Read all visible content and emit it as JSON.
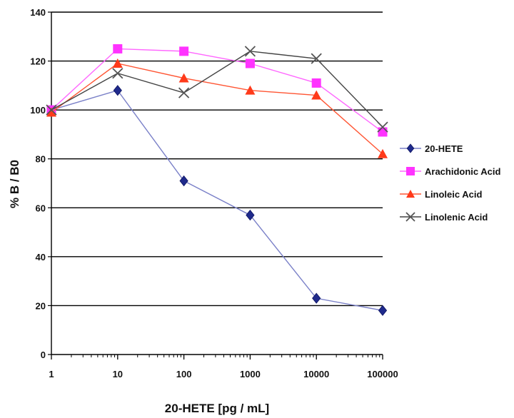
{
  "chart_data": {
    "type": "line",
    "title": "",
    "xlabel": "20-HETE [pg / mL]",
    "ylabel": "% B / B0",
    "x_scale": "log",
    "x": [
      1,
      10,
      100,
      1000,
      10000,
      100000
    ],
    "x_tick_labels": [
      "1",
      "10",
      "100",
      "1000",
      "10000",
      "100000"
    ],
    "ylim": [
      0,
      140
    ],
    "y_ticks": [
      0,
      20,
      40,
      60,
      80,
      100,
      120,
      140
    ],
    "y_tick_labels": [
      "0",
      "20",
      "40",
      "60",
      "80",
      "100",
      "120",
      "140"
    ],
    "grid": "horizontal",
    "legend_position": "right",
    "series": [
      {
        "name": "20-HETE",
        "color": "#1f2a8c",
        "marker": "diamond",
        "values": [
          100,
          108,
          71,
          57,
          23,
          18
        ]
      },
      {
        "name": "Arachidonic Acid",
        "color": "#ff33ff",
        "marker": "square",
        "values": [
          100,
          125,
          124,
          119,
          111,
          91
        ]
      },
      {
        "name": "Linoleic Acid",
        "color": "#ff3a1a",
        "marker": "triangle",
        "values": [
          99,
          119,
          113,
          108,
          106,
          82
        ]
      },
      {
        "name": "Linolenic Acid",
        "color": "#555555",
        "marker": "x",
        "values": [
          100,
          115,
          107,
          124,
          121,
          93
        ]
      }
    ]
  }
}
